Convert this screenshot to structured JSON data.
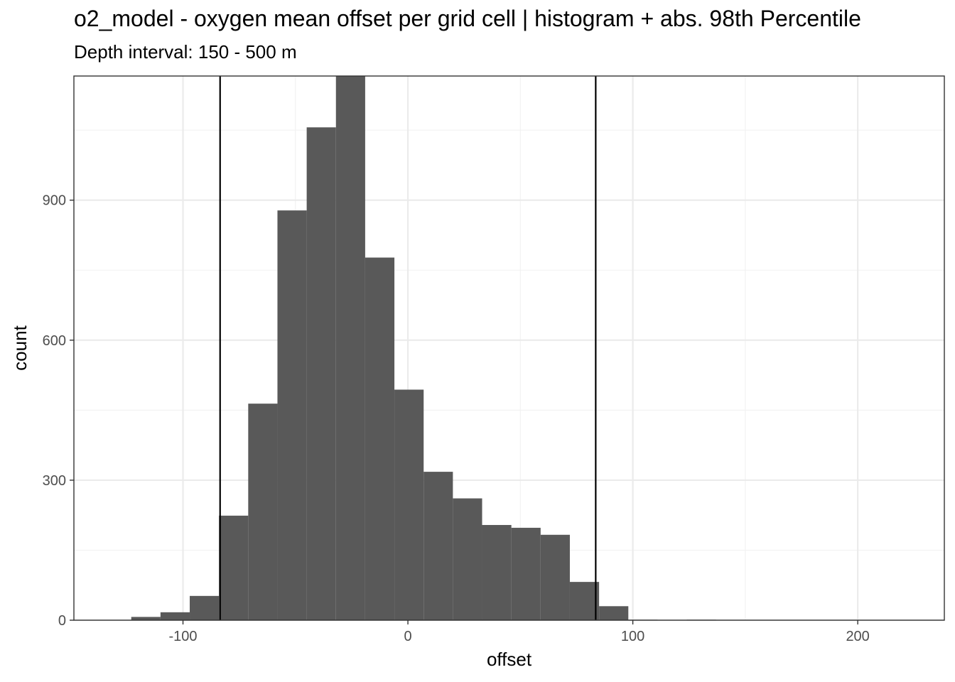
{
  "chart_data": {
    "type": "bar",
    "title": "o2_model  -  oxygen mean offset per grid cell | histogram + abs. 98th Percentile",
    "subtitle": "Depth interval: 150 - 500 m",
    "xlabel": "offset",
    "ylabel": "count",
    "xlim": [
      -148.5,
      238.5
    ],
    "ylim": [
      0,
      1166
    ],
    "x_ticks": [
      -100,
      0,
      100,
      200
    ],
    "x_tick_labels": [
      "-100",
      "0",
      "100",
      "200"
    ],
    "y_ticks": [
      0,
      300,
      600,
      900
    ],
    "y_tick_labels": [
      "0",
      "300",
      "600",
      "900"
    ],
    "bin_width": 13,
    "bins": [
      {
        "x0": -123,
        "x1": -110,
        "count": 7
      },
      {
        "x0": -110,
        "x1": -97,
        "count": 17
      },
      {
        "x0": -97,
        "x1": -84,
        "count": 52
      },
      {
        "x0": -84,
        "x1": -71,
        "count": 224
      },
      {
        "x0": -71,
        "x1": -58,
        "count": 464
      },
      {
        "x0": -58,
        "x1": -45,
        "count": 878
      },
      {
        "x0": -45,
        "x1": -32,
        "count": 1056
      },
      {
        "x0": -32,
        "x1": -19,
        "count": 1166
      },
      {
        "x0": -19,
        "x1": -6,
        "count": 777
      },
      {
        "x0": -6,
        "x1": 7,
        "count": 494
      },
      {
        "x0": 7,
        "x1": 20,
        "count": 318
      },
      {
        "x0": 20,
        "x1": 33,
        "count": 261
      },
      {
        "x0": 33,
        "x1": 46,
        "count": 204
      },
      {
        "x0": 46,
        "x1": 59,
        "count": 198
      },
      {
        "x0": 59,
        "x1": 72,
        "count": 183
      },
      {
        "x0": 72,
        "x1": 85,
        "count": 82
      },
      {
        "x0": 85,
        "x1": 98,
        "count": 30
      },
      {
        "x0": 98,
        "x1": 111,
        "count": 1
      },
      {
        "x0": 111,
        "x1": 124,
        "count": 0
      },
      {
        "x0": 124,
        "x1": 137,
        "count": 1
      }
    ],
    "percentile_lines": [
      -83.5,
      83.5
    ],
    "grid": true
  }
}
